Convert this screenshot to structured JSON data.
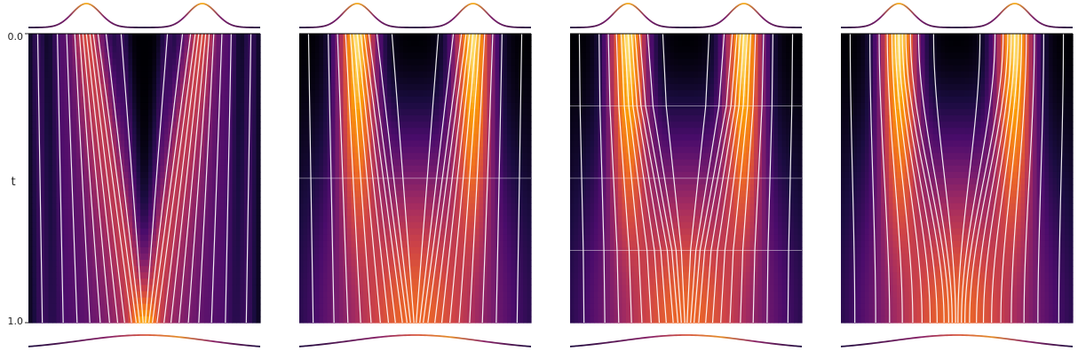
{
  "chart_data": {
    "type": "heatmap",
    "ylabel": "t",
    "yticks": [
      "0.0",
      "1.0"
    ],
    "ylim": [
      0.0,
      1.0
    ],
    "xlim": [
      -1.0,
      1.0
    ],
    "colormap": "inferno",
    "line_color": "#ffffff",
    "source_density": {
      "modes": [
        -0.5,
        0.5
      ],
      "sigma": 0.12
    },
    "target_density": {
      "modes": [
        0.0
      ],
      "sigma": 0.55
    },
    "panels": [
      {
        "name": "panel-1",
        "segment_boundaries": []
      },
      {
        "name": "panel-2",
        "segment_boundaries": [
          0.5
        ]
      },
      {
        "name": "panel-3",
        "segment_boundaries": [
          0.25,
          0.5,
          0.75
        ]
      },
      {
        "name": "panel-4",
        "segment_boundaries": []
      }
    ],
    "trajectories": {
      "x0": [
        -0.92,
        -0.75,
        -0.67,
        -0.6,
        -0.56,
        -0.53,
        -0.5,
        -0.47,
        -0.44,
        -0.4,
        -0.33,
        -0.2,
        0.2,
        0.33,
        0.4,
        0.44,
        0.47,
        0.5,
        0.53,
        0.56,
        0.6,
        0.67,
        0.75,
        0.92
      ],
      "x1": [
        -0.88,
        -0.7,
        -0.58,
        -0.47,
        -0.38,
        -0.3,
        -0.23,
        -0.17,
        -0.11,
        -0.07,
        -0.04,
        -0.01,
        0.01,
        0.04,
        0.07,
        0.11,
        0.17,
        0.23,
        0.3,
        0.38,
        0.47,
        0.58,
        0.7,
        0.88
      ]
    }
  }
}
